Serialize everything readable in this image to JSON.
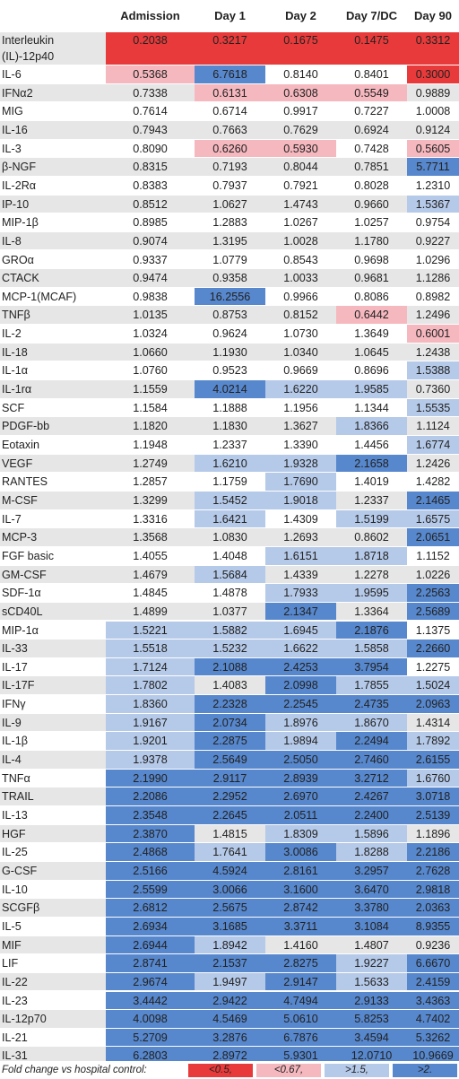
{
  "columns": [
    "Admission",
    "Day 1",
    "Day 2",
    "Day 7/DC",
    "Day 90"
  ],
  "colors": {
    "red": "#e83a3a",
    "pink": "#f5b8bf",
    "light": "#b5c9e8",
    "blue": "#5787cc"
  },
  "rows": [
    {
      "name": "Interleukin (IL)-12p40",
      "values": [
        "0.2038",
        "0.3217",
        "0.1675",
        "0.1475",
        "0.3312"
      ],
      "colors": [
        "red",
        "red",
        "red",
        "red",
        "red"
      ]
    },
    {
      "name": "IL-6",
      "values": [
        "0.5368",
        "6.7618",
        "0.8140",
        "0.8401",
        "0.3000"
      ],
      "colors": [
        "pink",
        "blue",
        "none",
        "none",
        "red"
      ]
    },
    {
      "name": "IFNα2",
      "values": [
        "0.7338",
        "0.6131",
        "0.6308",
        "0.5549",
        "0.9889"
      ],
      "colors": [
        "none",
        "pink",
        "pink",
        "pink",
        "none"
      ]
    },
    {
      "name": "MIG",
      "values": [
        "0.7614",
        "0.6714",
        "0.9917",
        "0.7227",
        "1.0008"
      ],
      "colors": [
        "none",
        "none",
        "none",
        "none",
        "none"
      ]
    },
    {
      "name": "IL-16",
      "values": [
        "0.7943",
        "0.7663",
        "0.7629",
        "0.6924",
        "0.9124"
      ],
      "colors": [
        "none",
        "none",
        "none",
        "none",
        "none"
      ]
    },
    {
      "name": "IL-3",
      "values": [
        "0.8090",
        "0.6260",
        "0.5930",
        "0.7428",
        "0.5605"
      ],
      "colors": [
        "none",
        "pink",
        "pink",
        "none",
        "pink"
      ]
    },
    {
      "name": "β-NGF",
      "values": [
        "0.8315",
        "0.7193",
        "0.8044",
        "0.7851",
        "5.7711"
      ],
      "colors": [
        "none",
        "none",
        "none",
        "none",
        "blue"
      ]
    },
    {
      "name": "IL-2Rα",
      "values": [
        "0.8383",
        "0.7937",
        "0.7921",
        "0.8028",
        "1.2310"
      ],
      "colors": [
        "none",
        "none",
        "none",
        "none",
        "none"
      ]
    },
    {
      "name": "IP-10",
      "values": [
        "0.8512",
        "1.0627",
        "1.4743",
        "0.9660",
        "1.5367"
      ],
      "colors": [
        "none",
        "none",
        "none",
        "none",
        "light"
      ]
    },
    {
      "name": "MIP-1β",
      "values": [
        "0.8985",
        "1.2883",
        "1.0267",
        "1.0257",
        "0.9754"
      ],
      "colors": [
        "none",
        "none",
        "none",
        "none",
        "none"
      ]
    },
    {
      "name": "IL-8",
      "values": [
        "0.9074",
        "1.3195",
        "1.0028",
        "1.1780",
        "0.9227"
      ],
      "colors": [
        "none",
        "none",
        "none",
        "none",
        "none"
      ]
    },
    {
      "name": "GROα",
      "values": [
        "0.9337",
        "1.0779",
        "0.8543",
        "0.9698",
        "1.0296"
      ],
      "colors": [
        "none",
        "none",
        "none",
        "none",
        "none"
      ]
    },
    {
      "name": "CTACK",
      "values": [
        "0.9474",
        "0.9358",
        "1.0033",
        "0.9681",
        "1.1286"
      ],
      "colors": [
        "none",
        "none",
        "none",
        "none",
        "none"
      ]
    },
    {
      "name": "MCP-1(MCAF)",
      "values": [
        "0.9838",
        "16.2556",
        "0.9966",
        "0.8086",
        "0.8982"
      ],
      "colors": [
        "none",
        "blue",
        "none",
        "none",
        "none"
      ]
    },
    {
      "name": "TNFβ",
      "values": [
        "1.0135",
        "0.8753",
        "0.8152",
        "0.6442",
        "1.2496"
      ],
      "colors": [
        "none",
        "none",
        "none",
        "pink",
        "none"
      ]
    },
    {
      "name": "IL-2",
      "values": [
        "1.0324",
        "0.9624",
        "1.0730",
        "1.3649",
        "0.6001"
      ],
      "colors": [
        "none",
        "none",
        "none",
        "none",
        "pink"
      ]
    },
    {
      "name": "IL-18",
      "values": [
        "1.0660",
        "1.1930",
        "1.0340",
        "1.0645",
        "1.2438"
      ],
      "colors": [
        "none",
        "none",
        "none",
        "none",
        "none"
      ]
    },
    {
      "name": "IL-1α",
      "values": [
        "1.0760",
        "0.9523",
        "0.9669",
        "0.8696",
        "1.5388"
      ],
      "colors": [
        "none",
        "none",
        "none",
        "none",
        "light"
      ]
    },
    {
      "name": "IL-1rα",
      "values": [
        "1.1559",
        "4.0214",
        "1.6220",
        "1.9585",
        "0.7360"
      ],
      "colors": [
        "none",
        "blue",
        "light",
        "light",
        "none"
      ]
    },
    {
      "name": "SCF",
      "values": [
        "1.1584",
        "1.1888",
        "1.1956",
        "1.1344",
        "1.5535"
      ],
      "colors": [
        "none",
        "none",
        "none",
        "none",
        "light"
      ]
    },
    {
      "name": "PDGF-bb",
      "values": [
        "1.1820",
        "1.1830",
        "1.3627",
        "1.8366",
        "1.1124"
      ],
      "colors": [
        "none",
        "none",
        "none",
        "light",
        "none"
      ]
    },
    {
      "name": "Eotaxin",
      "values": [
        "1.1948",
        "1.2337",
        "1.3390",
        "1.4456",
        "1.6774"
      ],
      "colors": [
        "none",
        "none",
        "none",
        "none",
        "light"
      ]
    },
    {
      "name": "VEGF",
      "values": [
        "1.2749",
        "1.6210",
        "1.9328",
        "2.1658",
        "1.2426"
      ],
      "colors": [
        "none",
        "light",
        "light",
        "blue",
        "none"
      ]
    },
    {
      "name": "RANTES",
      "values": [
        "1.2857",
        "1.1759",
        "1.7690",
        "1.4019",
        "1.4282"
      ],
      "colors": [
        "none",
        "none",
        "light",
        "none",
        "none"
      ]
    },
    {
      "name": "M-CSF",
      "values": [
        "1.3299",
        "1.5452",
        "1.9018",
        "1.2337",
        "2.1465"
      ],
      "colors": [
        "none",
        "light",
        "light",
        "none",
        "blue"
      ]
    },
    {
      "name": "IL-7",
      "values": [
        "1.3316",
        "1.6421",
        "1.4309",
        "1.5199",
        "1.6575"
      ],
      "colors": [
        "none",
        "light",
        "none",
        "light",
        "light"
      ]
    },
    {
      "name": "MCP-3",
      "values": [
        "1.3568",
        "1.0830",
        "1.2693",
        "0.8602",
        "2.0651"
      ],
      "colors": [
        "none",
        "none",
        "none",
        "none",
        "blue"
      ]
    },
    {
      "name": "FGF basic",
      "values": [
        "1.4055",
        "1.4048",
        "1.6151",
        "1.8718",
        "1.1152"
      ],
      "colors": [
        "none",
        "none",
        "light",
        "light",
        "none"
      ]
    },
    {
      "name": "GM-CSF",
      "values": [
        "1.4679",
        "1.5684",
        "1.4339",
        "1.2278",
        "1.0226"
      ],
      "colors": [
        "none",
        "light",
        "none",
        "none",
        "none"
      ]
    },
    {
      "name": "SDF-1α",
      "values": [
        "1.4845",
        "1.4878",
        "1.7933",
        "1.9595",
        "2.2563"
      ],
      "colors": [
        "none",
        "none",
        "light",
        "light",
        "blue"
      ]
    },
    {
      "name": "sCD40L",
      "values": [
        "1.4899",
        "1.0377",
        "2.1347",
        "1.3364",
        "2.5689"
      ],
      "colors": [
        "none",
        "none",
        "blue",
        "none",
        "blue"
      ]
    },
    {
      "name": "MIP-1α",
      "values": [
        "1.5221",
        "1.5882",
        "1.6945",
        "2.1876",
        "1.1375"
      ],
      "colors": [
        "light",
        "light",
        "light",
        "blue",
        "none"
      ]
    },
    {
      "name": "IL-33",
      "values": [
        "1.5518",
        "1.5232",
        "1.6622",
        "1.5858",
        "2.2660"
      ],
      "colors": [
        "light",
        "light",
        "light",
        "light",
        "blue"
      ]
    },
    {
      "name": "IL-17",
      "values": [
        "1.7124",
        "2.1088",
        "2.4253",
        "3.7954",
        "1.2275"
      ],
      "colors": [
        "light",
        "blue",
        "blue",
        "blue",
        "none"
      ]
    },
    {
      "name": "IL-17F",
      "values": [
        "1.7802",
        "1.4083",
        "2.0998",
        "1.7855",
        "1.5024"
      ],
      "colors": [
        "light",
        "none",
        "blue",
        "light",
        "light"
      ]
    },
    {
      "name": "IFNγ",
      "values": [
        "1.8360",
        "2.2328",
        "2.2545",
        "2.4735",
        "2.0963"
      ],
      "colors": [
        "light",
        "blue",
        "blue",
        "blue",
        "blue"
      ]
    },
    {
      "name": "IL-9",
      "values": [
        "1.9167",
        "2.0734",
        "1.8976",
        "1.8670",
        "1.4314"
      ],
      "colors": [
        "light",
        "blue",
        "light",
        "light",
        "none"
      ]
    },
    {
      "name": "IL-1β",
      "values": [
        "1.9201",
        "2.2875",
        "1.9894",
        "2.2494",
        "1.7892"
      ],
      "colors": [
        "light",
        "blue",
        "light",
        "blue",
        "light"
      ]
    },
    {
      "name": "IL-4",
      "values": [
        "1.9378",
        "2.5649",
        "2.5050",
        "2.7460",
        "2.6155"
      ],
      "colors": [
        "light",
        "blue",
        "blue",
        "blue",
        "blue"
      ]
    },
    {
      "name": "TNFα",
      "values": [
        "2.1990",
        "2.9117",
        "2.8939",
        "3.2712",
        "1.6760"
      ],
      "colors": [
        "blue",
        "blue",
        "blue",
        "blue",
        "light"
      ]
    },
    {
      "name": "TRAIL",
      "values": [
        "2.2086",
        "2.2952",
        "2.6970",
        "2.4267",
        "3.0718"
      ],
      "colors": [
        "blue",
        "blue",
        "blue",
        "blue",
        "blue"
      ]
    },
    {
      "name": "IL-13",
      "values": [
        "2.3548",
        "2.2645",
        "2.0511",
        "2.2400",
        "2.5139"
      ],
      "colors": [
        "blue",
        "blue",
        "blue",
        "blue",
        "blue"
      ]
    },
    {
      "name": "HGF",
      "values": [
        "2.3870",
        "1.4815",
        "1.8309",
        "1.5896",
        "1.1896"
      ],
      "colors": [
        "blue",
        "none",
        "light",
        "light",
        "none"
      ]
    },
    {
      "name": "IL-25",
      "values": [
        "2.4868",
        "1.7641",
        "3.0086",
        "1.8288",
        "2.2186"
      ],
      "colors": [
        "blue",
        "light",
        "blue",
        "light",
        "blue"
      ]
    },
    {
      "name": "G-CSF",
      "values": [
        "2.5166",
        "4.5924",
        "2.8161",
        "3.2957",
        "2.7628"
      ],
      "colors": [
        "blue",
        "blue",
        "blue",
        "blue",
        "blue"
      ]
    },
    {
      "name": "IL-10",
      "values": [
        "2.5599",
        "3.0066",
        "3.1600",
        "3.6470",
        "2.9818"
      ],
      "colors": [
        "blue",
        "blue",
        "blue",
        "blue",
        "blue"
      ]
    },
    {
      "name": "SCGFβ",
      "values": [
        "2.6812",
        "2.5675",
        "2.8742",
        "3.3780",
        "2.0363"
      ],
      "colors": [
        "blue",
        "blue",
        "blue",
        "blue",
        "blue"
      ]
    },
    {
      "name": "IL-5",
      "values": [
        "2.6934",
        "3.1685",
        "3.3711",
        "3.1084",
        "8.9355"
      ],
      "colors": [
        "blue",
        "blue",
        "blue",
        "blue",
        "blue"
      ]
    },
    {
      "name": "MIF",
      "values": [
        "2.6944",
        "1.8942",
        "1.4160",
        "1.4807",
        "0.9236"
      ],
      "colors": [
        "blue",
        "light",
        "none",
        "none",
        "none"
      ]
    },
    {
      "name": "LIF",
      "values": [
        "2.8741",
        "2.1537",
        "2.8275",
        "1.9227",
        "6.6670"
      ],
      "colors": [
        "blue",
        "blue",
        "blue",
        "light",
        "blue"
      ]
    },
    {
      "name": "IL-22",
      "values": [
        "2.9674",
        "1.9497",
        "2.9147",
        "1.5633",
        "2.4159"
      ],
      "colors": [
        "blue",
        "light",
        "blue",
        "light",
        "blue"
      ]
    },
    {
      "name": "IL-23",
      "values": [
        "3.4442",
        "2.9422",
        "4.7494",
        "2.9133",
        "3.4363"
      ],
      "colors": [
        "blue",
        "blue",
        "blue",
        "blue",
        "blue"
      ]
    },
    {
      "name": "IL-12p70",
      "values": [
        "4.0098",
        "4.5469",
        "5.0610",
        "5.8253",
        "4.7402"
      ],
      "colors": [
        "blue",
        "blue",
        "blue",
        "blue",
        "blue"
      ]
    },
    {
      "name": "IL-21",
      "values": [
        "5.2709",
        "3.2876",
        "6.7876",
        "3.4594",
        "5.3262"
      ],
      "colors": [
        "blue",
        "blue",
        "blue",
        "blue",
        "blue"
      ]
    },
    {
      "name": "IL-31",
      "values": [
        "6.2803",
        "2.8972",
        "5.9301",
        "12.0710",
        "10.9669"
      ],
      "colors": [
        "blue",
        "blue",
        "blue",
        "blue",
        "blue"
      ]
    }
  ],
  "legend": {
    "label": "Fold change vs hospital control:",
    "items": [
      {
        "text": "<0.5,",
        "color": "red"
      },
      {
        "text": "<0.67,",
        "color": "pink"
      },
      {
        "text": ">1.5,",
        "color": "light"
      },
      {
        "text": ">2.",
        "color": "blue"
      }
    ]
  }
}
